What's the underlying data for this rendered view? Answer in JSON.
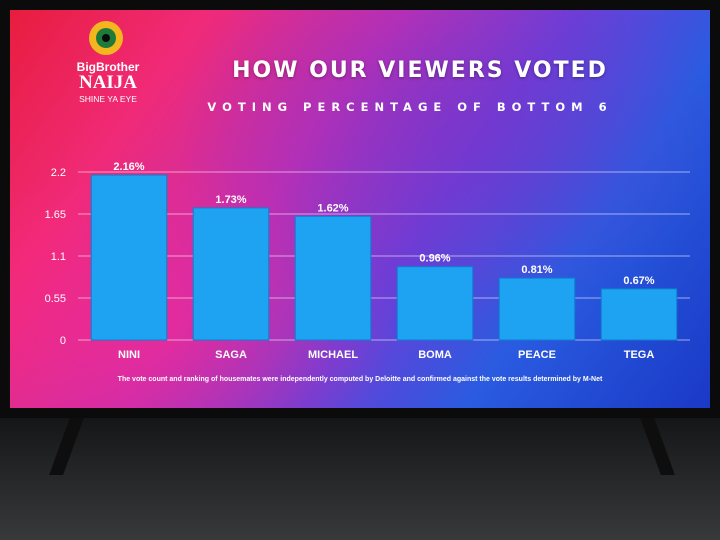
{
  "logo": {
    "brand_line1": "BigBrother",
    "brand_line2": "NAIJA",
    "tagline": "SHINE YA EYE"
  },
  "header": {
    "title": "HOW OUR VIEWERS VOTED",
    "subtitle": "VOTING PERCENTAGE OF BOTTOM 6"
  },
  "footnote": "The vote count and ranking of housemates were independently computed by Deloitte and confirmed against the vote results determined by M-Net",
  "colors": {
    "bar": "#1ea2f2",
    "bar_edge": "#0d7fd0",
    "text": "#ffffff",
    "grid": "rgba(255,255,255,0.55)"
  },
  "chart_data": {
    "type": "bar",
    "title": "HOW OUR VIEWERS VOTED",
    "subtitle": "VOTING PERCENTAGE OF BOTTOM 6",
    "categories": [
      "NINI",
      "SAGA",
      "MICHAEL",
      "BOMA",
      "PEACE",
      "TEGA"
    ],
    "values": [
      2.16,
      1.73,
      1.62,
      0.96,
      0.81,
      0.67
    ],
    "data_labels": [
      "2.16%",
      "1.73%",
      "1.62%",
      "0.96%",
      "0.81%",
      "0.67%"
    ],
    "yticks": [
      0,
      0.55,
      1.1,
      1.65,
      2.2
    ],
    "ytick_labels": [
      "0",
      "0.55",
      "1.1",
      "1.65",
      "2.2"
    ],
    "ylim": [
      0,
      2.2
    ],
    "xlabel": "",
    "ylabel": "",
    "grid": true,
    "legend": "none"
  }
}
